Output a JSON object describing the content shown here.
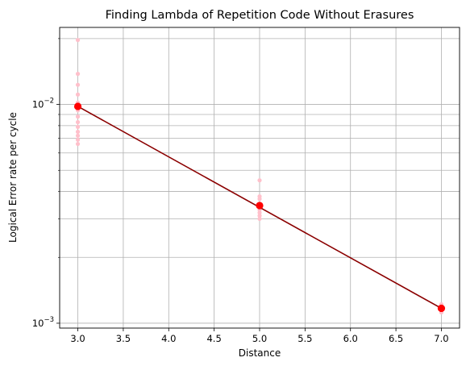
{
  "chart_data": {
    "type": "scatter",
    "title": "Finding Lambda of Repetition Code Without Erasures",
    "xlabel": "Distance",
    "ylabel": "Logical Error rate per cycle",
    "xlim": [
      2.8,
      7.2
    ],
    "ylim": [
      0.00095,
      0.0225
    ],
    "yscale": "log",
    "grid": true,
    "x_ticks": [
      3.0,
      3.5,
      4.0,
      4.5,
      5.0,
      5.5,
      6.0,
      6.5,
      7.0
    ],
    "x_tick_labels": [
      "3.0",
      "3.5",
      "4.0",
      "4.5",
      "5.0",
      "5.5",
      "6.0",
      "6.5",
      "7.0"
    ],
    "y_major_ticks": [
      0.001,
      0.01
    ],
    "y_major_tick_labels": [
      {
        "base": "10",
        "exp": "−3"
      },
      {
        "base": "10",
        "exp": "−2"
      }
    ],
    "y_minor_ticks": [
      0.002,
      0.003,
      0.004,
      0.005,
      0.006,
      0.007,
      0.008,
      0.009,
      0.02
    ],
    "series": [
      {
        "role": "samples",
        "color": "#ffc0cb",
        "points": [
          [
            3,
            0.0197
          ],
          [
            3,
            0.0138
          ],
          [
            3,
            0.0123
          ],
          [
            3,
            0.0111
          ],
          [
            3,
            0.0102
          ],
          [
            3,
            0.0094
          ],
          [
            3,
            0.0088
          ],
          [
            3,
            0.0083
          ],
          [
            3,
            0.0079
          ],
          [
            3,
            0.0075
          ],
          [
            3,
            0.0072
          ],
          [
            3,
            0.0069
          ],
          [
            3,
            0.0066
          ],
          [
            5,
            0.0045
          ],
          [
            5,
            0.0038
          ],
          [
            5,
            0.0037
          ],
          [
            5,
            0.0035
          ],
          [
            5,
            0.0033
          ],
          [
            5,
            0.0032
          ],
          [
            5,
            0.0031
          ],
          [
            5,
            0.003
          ],
          [
            7,
            0.00122
          ],
          [
            7,
            0.00118
          ],
          [
            7,
            0.00115
          ],
          [
            7,
            0.00112
          ]
        ]
      },
      {
        "role": "mean",
        "color": "#ff0000",
        "points": [
          [
            3,
            0.0098
          ],
          [
            5,
            0.00345
          ],
          [
            7,
            0.00117
          ]
        ]
      },
      {
        "role": "fit",
        "color": "#8b0000",
        "points": [
          [
            3,
            0.0098
          ],
          [
            7,
            0.00117
          ]
        ]
      }
    ]
  }
}
